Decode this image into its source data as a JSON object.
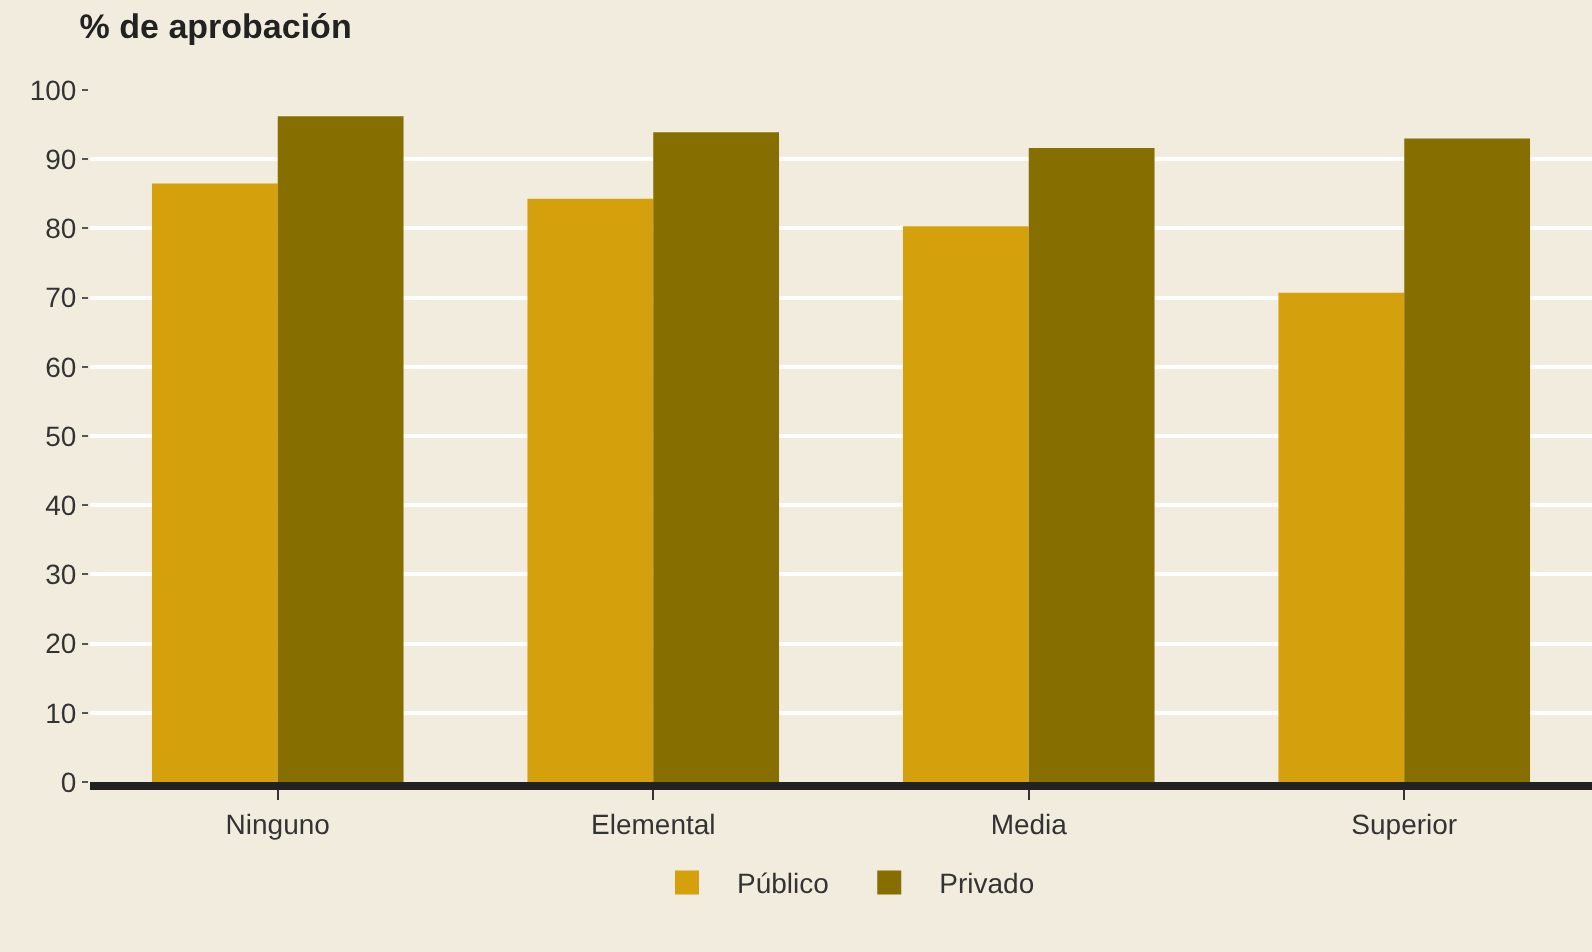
{
  "chart_data": {
    "type": "bar",
    "title": "% de aprobación",
    "categories": [
      "Ninguno",
      "Elemental",
      "Media",
      "Superior"
    ],
    "series": [
      {
        "name": "Público",
        "color": "#d4a00c",
        "values": [
          86.5,
          84.3,
          80.3,
          70.7
        ]
      },
      {
        "name": "Privado",
        "color": "#876e00",
        "values": [
          96.2,
          93.9,
          91.6,
          93.0
        ]
      }
    ],
    "ylim": [
      0,
      100
    ],
    "yticks": [
      0,
      10,
      20,
      30,
      40,
      50,
      60,
      70,
      80,
      90,
      100
    ],
    "grid": "y",
    "legend": "bottom"
  }
}
